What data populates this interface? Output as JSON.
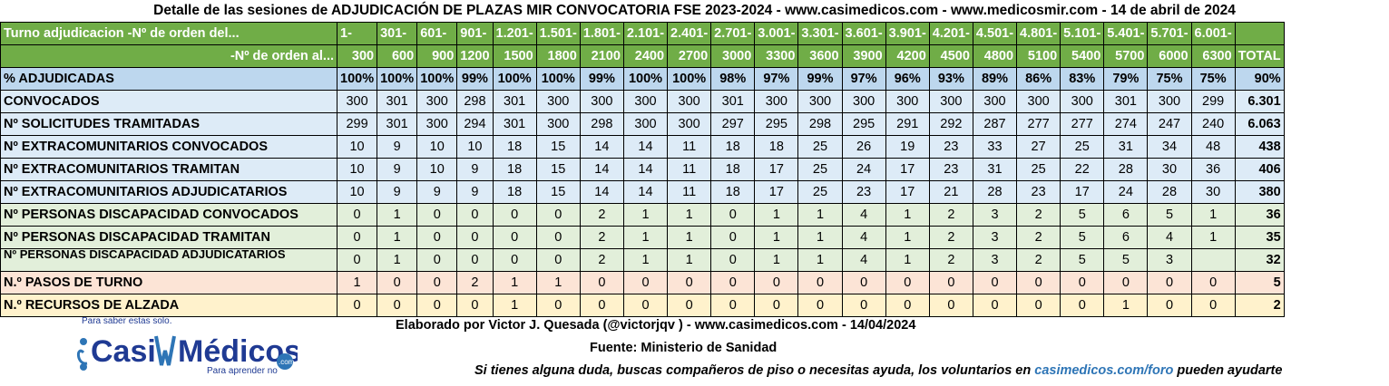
{
  "title": "Detalle de las sesiones de ADJUDICACIÓN DE PLAZAS MIR CONVOCATORIA FSE 2023-2024  - www.casimedicos.com - www.medicosmir.com - 14 de abril de 2024",
  "header": {
    "row1_label": "Turno adjudicacion -Nº de orden del...",
    "row2_label": "-Nº de orden al...",
    "from": [
      "1-",
      "301-",
      "601-",
      "901-",
      "1.201-",
      "1.501-",
      "1.801-",
      "2.101-",
      "2.401-",
      "2.701-",
      "3.001-",
      "3.301-",
      "3.601-",
      "3.901-",
      "4.201-",
      "4.501-",
      "4.801-",
      "5.101-",
      "5.401-",
      "5.701-",
      "6.001-"
    ],
    "to": [
      "300",
      "600",
      "900",
      "1200",
      "1500",
      "1800",
      "2100",
      "2400",
      "2700",
      "3000",
      "3300",
      "3600",
      "3900",
      "4200",
      "4500",
      "4800",
      "5100",
      "5400",
      "5700",
      "6000",
      "6300"
    ],
    "total_label": "TOTAL"
  },
  "rows": [
    {
      "label": "% ADJUDICADAS",
      "values": [
        "100%",
        "100%",
        "100%",
        "99%",
        "100%",
        "100%",
        "99%",
        "100%",
        "100%",
        "98%",
        "97%",
        "99%",
        "97%",
        "96%",
        "93%",
        "89%",
        "86%",
        "83%",
        "79%",
        "75%",
        "75%"
      ],
      "total": "90%"
    },
    {
      "label": "CONVOCADOS",
      "values": [
        "300",
        "301",
        "300",
        "298",
        "301",
        "300",
        "300",
        "300",
        "300",
        "301",
        "300",
        "300",
        "300",
        "300",
        "300",
        "300",
        "300",
        "300",
        "301",
        "300",
        "299"
      ],
      "total": "6.301"
    },
    {
      "label": "Nº SOLICITUDES TRAMITADAS",
      "values": [
        "299",
        "301",
        "300",
        "294",
        "301",
        "300",
        "298",
        "300",
        "300",
        "297",
        "295",
        "298",
        "295",
        "291",
        "292",
        "287",
        "277",
        "277",
        "274",
        "247",
        "240"
      ],
      "total": "6.063"
    },
    {
      "label": "Nº EXTRACOMUNITARIOS CONVOCADOS",
      "values": [
        "10",
        "9",
        "10",
        "10",
        "18",
        "15",
        "14",
        "14",
        "11",
        "18",
        "18",
        "25",
        "26",
        "19",
        "23",
        "33",
        "27",
        "25",
        "31",
        "34",
        "48"
      ],
      "total": "438"
    },
    {
      "label": "Nº EXTRACOMUNITARIOS TRAMITAN",
      "values": [
        "10",
        "9",
        "10",
        "9",
        "18",
        "15",
        "14",
        "14",
        "11",
        "18",
        "17",
        "25",
        "24",
        "17",
        "23",
        "31",
        "25",
        "22",
        "28",
        "30",
        "36"
      ],
      "total": "406"
    },
    {
      "label": "Nº EXTRACOMUNITARIOS ADJUDICATARIOS",
      "values": [
        "10",
        "9",
        "9",
        "9",
        "18",
        "15",
        "14",
        "14",
        "11",
        "18",
        "17",
        "25",
        "23",
        "17",
        "21",
        "28",
        "23",
        "17",
        "24",
        "28",
        "30"
      ],
      "total": "380"
    },
    {
      "label": "Nº PERSONAS DISCAPACIDAD CONVOCADOS",
      "values": [
        "0",
        "1",
        "0",
        "0",
        "0",
        "0",
        "2",
        "1",
        "1",
        "0",
        "1",
        "1",
        "4",
        "1",
        "2",
        "3",
        "2",
        "5",
        "6",
        "5",
        "1"
      ],
      "total": "36"
    },
    {
      "label": "Nº PERSONAS DISCAPACIDAD TRAMITAN",
      "values": [
        "0",
        "1",
        "0",
        "0",
        "0",
        "0",
        "2",
        "1",
        "1",
        "0",
        "1",
        "1",
        "4",
        "1",
        "2",
        "3",
        "2",
        "5",
        "6",
        "4",
        "1"
      ],
      "total": "35"
    },
    {
      "label": "Nº PERSONAS DISCAPACIDAD ADJUDICATARIOS",
      "values": [
        "0",
        "1",
        "0",
        "0",
        "0",
        "0",
        "2",
        "1",
        "1",
        "0",
        "1",
        "1",
        "4",
        "1",
        "2",
        "3",
        "2",
        "5",
        "5",
        "3",
        ""
      ],
      "total": "32"
    },
    {
      "label": "N.º PASOS DE TURNO",
      "values": [
        "1",
        "0",
        "0",
        "2",
        "1",
        "1",
        "0",
        "0",
        "0",
        "0",
        "0",
        "0",
        "0",
        "0",
        "0",
        "0",
        "0",
        "0",
        "0",
        "0",
        "0"
      ],
      "total": "5"
    },
    {
      "label": "N.º RECURSOS DE ALZADA",
      "values": [
        "0",
        "0",
        "0",
        "0",
        "1",
        "0",
        "0",
        "0",
        "0",
        "0",
        "0",
        "0",
        "0",
        "0",
        "0",
        "0",
        "0",
        "0",
        "1",
        "0",
        "0"
      ],
      "total": "2"
    }
  ],
  "footer": {
    "credit": "Elaborado por Victor J. Quesada (@victorjqv ) - www.casimedicos.com - 14/04/2024",
    "source": "Fuente: Ministerio de Sanidad",
    "help_text": "Si tienes alguna duda, buscas compañeros de piso o necesitas ayuda, los voluntarios en",
    "help_link": "casimedicos.com/foro",
    "help_tail": "pueden ayudarte"
  },
  "logo": {
    "tagline_top": "Para saber estas solo.",
    "name_casi": "Casi",
    "name_medicos": "Médicos",
    "domain": ".com",
    "tagline_bottom": "Para aprender no"
  },
  "colors": {
    "header_green": "#70ad47",
    "pct_row": "#bdd7ee",
    "blue_rows": "#ddebf7",
    "green_rows": "#e2efda",
    "orange_row": "#fce4d6",
    "yellow_row": "#fff2cc",
    "link_blue": "#2e75b6"
  }
}
